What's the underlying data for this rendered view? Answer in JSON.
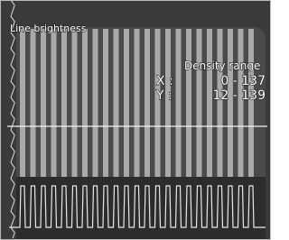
{
  "overlay": {
    "title": "Line brightness",
    "density": {
      "label": "Density range",
      "x": {
        "axis": "X :",
        "range": "0 - 137"
      },
      "y": {
        "axis": "Y :",
        "range": "12 - 139"
      }
    }
  }
}
